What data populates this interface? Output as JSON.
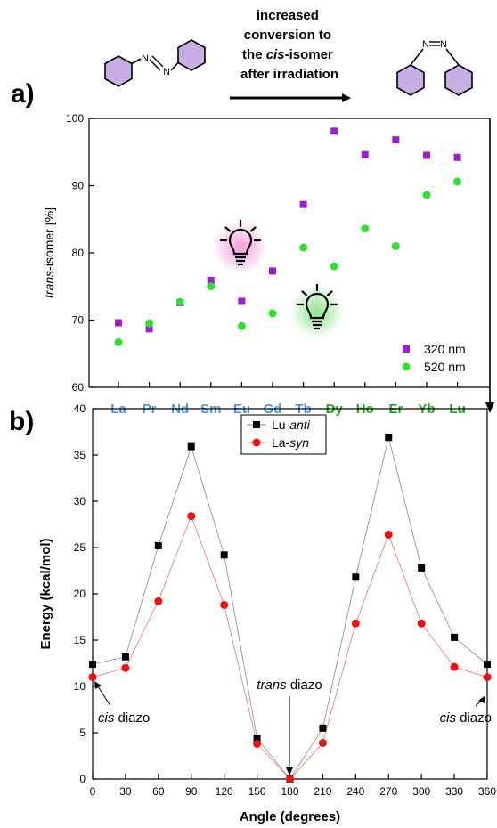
{
  "header": {
    "arrow_text": [
      "increased",
      "conversion to",
      "the ",
      "cis",
      "-isomer",
      "after irradiation"
    ]
  },
  "colors": {
    "purple": "#9b1fd1",
    "green": "#2fe02f",
    "light_ln": "#4f93d6",
    "heavy_ln": "#1da31d",
    "ring_fill": "#c9aee6",
    "bulb_glow_pink": "#f29bd8",
    "bulb_glow_green": "#8fe38f",
    "black_series": "#000000",
    "red_series": "#ee1111"
  },
  "icons": [
    "trans-azobenzene-structure-icon",
    "cis-azobenzene-structure-icon",
    "lightbulb-icon"
  ],
  "chart_data": [
    {
      "panel_label": "a)",
      "type": "scatter",
      "categories": [
        "La",
        "Pr",
        "Nd",
        "Sm",
        "Eu",
        "Gd",
        "Tb",
        "Dy",
        "Ho",
        "Er",
        "Yb",
        "Lu"
      ],
      "category_groups": {
        "light": [
          "La",
          "Pr",
          "Nd",
          "Sm",
          "Eu",
          "Gd",
          "Tb"
        ],
        "heavy": [
          "Dy",
          "Ho",
          "Er",
          "Yb",
          "Lu"
        ]
      },
      "ylabel_italic": "trans",
      "ylabel_rest": "-isomer [%]",
      "ylim": [
        60,
        100
      ],
      "yticks": [
        60,
        70,
        80,
        90,
        100
      ],
      "series": [
        {
          "name": "320 nm",
          "marker": "square",
          "color": "#9b1fd1",
          "values": [
            69.6,
            68.7,
            72.6,
            75.9,
            72.8,
            77.3,
            87.2,
            98.1,
            94.6,
            96.8,
            94.5,
            94.2
          ]
        },
        {
          "name": "520 nm",
          "marker": "circle",
          "color": "#2fe02f",
          "values": [
            66.7,
            69.5,
            72.7,
            75.0,
            69.1,
            71.0,
            80.8,
            78.0,
            83.6,
            81.0,
            88.6,
            90.6
          ]
        }
      ],
      "legend_position": "bottom-right",
      "grid": false
    },
    {
      "panel_label": "b)",
      "type": "line",
      "xlabel": "Angle (degrees)",
      "ylabel": "Energy (kcal/mol)",
      "x": [
        0,
        30,
        60,
        90,
        120,
        150,
        180,
        210,
        240,
        270,
        300,
        330,
        360
      ],
      "xlim": [
        0,
        360
      ],
      "ylim": [
        0,
        40
      ],
      "yticks": [
        0,
        5,
        10,
        15,
        20,
        25,
        30,
        35,
        40
      ],
      "series": [
        {
          "name_prefix": "Lu-",
          "name_italic": "anti",
          "marker": "square",
          "color": "#000000",
          "values": [
            12.4,
            13.2,
            25.2,
            35.9,
            24.2,
            4.4,
            0.0,
            5.5,
            21.8,
            36.9,
            22.8,
            15.3,
            12.4
          ]
        },
        {
          "name_prefix": "La-",
          "name_italic": "syn",
          "marker": "circle",
          "color": "#ee1111",
          "values": [
            11.0,
            12.0,
            19.2,
            28.4,
            18.8,
            3.8,
            0.0,
            3.9,
            16.8,
            26.4,
            16.8,
            12.1,
            11.0
          ]
        }
      ],
      "legend_position": "top-center",
      "grid": false,
      "annotations": [
        {
          "italic": "cis",
          "rest": " diazo",
          "at_x": 0
        },
        {
          "italic": "trans",
          "rest": " diazo",
          "at_x": 180
        },
        {
          "italic": "cis",
          "rest": " diazo",
          "at_x": 360
        }
      ]
    }
  ]
}
